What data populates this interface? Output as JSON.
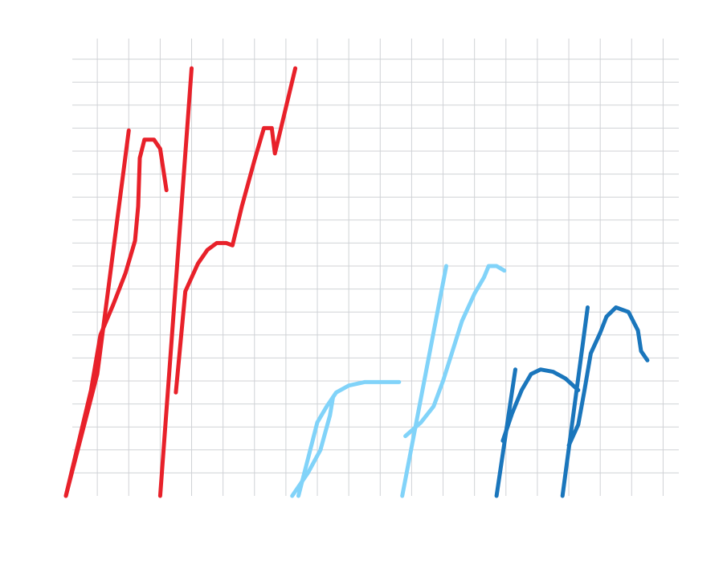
{
  "chart_data": {
    "type": "line",
    "grid": true,
    "xlim": [
      0,
      19.5
    ],
    "ylim": [
      0,
      20
    ],
    "colors": {
      "red": "#e8212a",
      "light_blue": "#81d3f9",
      "blue": "#1a76bc",
      "grid": "#d0d2d6"
    },
    "series": [
      {
        "color": "red",
        "points": [
          [
            0,
            0
          ],
          [
            1.0,
            5.3
          ],
          [
            2.0,
            15.9
          ]
        ]
      },
      {
        "color": "red",
        "points": [
          [
            0,
            0
          ],
          [
            0.8,
            4.6
          ],
          [
            1.1,
            7.0
          ],
          [
            1.5,
            8.3
          ],
          [
            1.9,
            9.7
          ],
          [
            2.2,
            11.1
          ],
          [
            2.3,
            12.6
          ],
          [
            2.35,
            14.7
          ],
          [
            2.5,
            15.5
          ],
          [
            2.8,
            15.5
          ],
          [
            3.0,
            15.1
          ],
          [
            3.2,
            13.3
          ]
        ]
      },
      {
        "color": "red",
        "points": [
          [
            3.0,
            0
          ],
          [
            4.0,
            18.6
          ]
        ]
      },
      {
        "color": "red",
        "points": [
          [
            3.5,
            4.5
          ],
          [
            3.8,
            8.9
          ],
          [
            4.2,
            10.1
          ],
          [
            4.5,
            10.7
          ],
          [
            4.8,
            11.0
          ],
          [
            5.1,
            11.0
          ],
          [
            5.3,
            10.9
          ],
          [
            5.6,
            12.6
          ],
          [
            6.0,
            14.6
          ],
          [
            6.3,
            16.0
          ],
          [
            6.55,
            16.0
          ],
          [
            6.65,
            14.9
          ],
          [
            7.3,
            18.6
          ]
        ]
      },
      {
        "color": "light_blue",
        "points": [
          [
            7.2,
            0
          ],
          [
            7.7,
            1.0
          ],
          [
            8.1,
            2.0
          ],
          [
            8.4,
            3.5
          ],
          [
            8.5,
            4.3
          ]
        ]
      },
      {
        "color": "light_blue",
        "points": [
          [
            7.4,
            0
          ],
          [
            8.0,
            3.2
          ],
          [
            8.3,
            3.9
          ],
          [
            8.6,
            4.5
          ],
          [
            9.0,
            4.8
          ],
          [
            9.5,
            4.95
          ],
          [
            10.6,
            4.95
          ]
        ]
      },
      {
        "color": "light_blue",
        "points": [
          [
            10.7,
            0
          ],
          [
            12.1,
            10.0
          ]
        ]
      },
      {
        "color": "light_blue",
        "points": [
          [
            10.8,
            2.6
          ],
          [
            11.3,
            3.2
          ],
          [
            11.7,
            3.9
          ],
          [
            12.0,
            5.0
          ],
          [
            12.3,
            6.3
          ],
          [
            12.6,
            7.6
          ],
          [
            13.0,
            8.8
          ],
          [
            13.3,
            9.5
          ],
          [
            13.45,
            10.0
          ],
          [
            13.7,
            10.0
          ],
          [
            13.95,
            9.8
          ]
        ]
      },
      {
        "color": "blue",
        "points": [
          [
            13.7,
            0
          ],
          [
            14.3,
            5.5
          ]
        ]
      },
      {
        "color": "blue",
        "points": [
          [
            13.9,
            2.4
          ],
          [
            14.2,
            3.6
          ],
          [
            14.5,
            4.6
          ],
          [
            14.8,
            5.3
          ],
          [
            15.1,
            5.5
          ],
          [
            15.5,
            5.4
          ],
          [
            15.9,
            5.1
          ],
          [
            16.3,
            4.6
          ]
        ]
      },
      {
        "color": "blue",
        "points": [
          [
            15.8,
            0
          ],
          [
            16.6,
            8.2
          ]
        ]
      },
      {
        "color": "blue",
        "points": [
          [
            16.0,
            2.2
          ],
          [
            16.3,
            3.1
          ],
          [
            16.5,
            4.6
          ],
          [
            16.7,
            6.2
          ],
          [
            17.0,
            7.1
          ],
          [
            17.2,
            7.8
          ],
          [
            17.5,
            8.2
          ],
          [
            17.9,
            8.0
          ],
          [
            18.2,
            7.2
          ],
          [
            18.3,
            6.3
          ],
          [
            18.5,
            5.9
          ]
        ]
      }
    ]
  }
}
